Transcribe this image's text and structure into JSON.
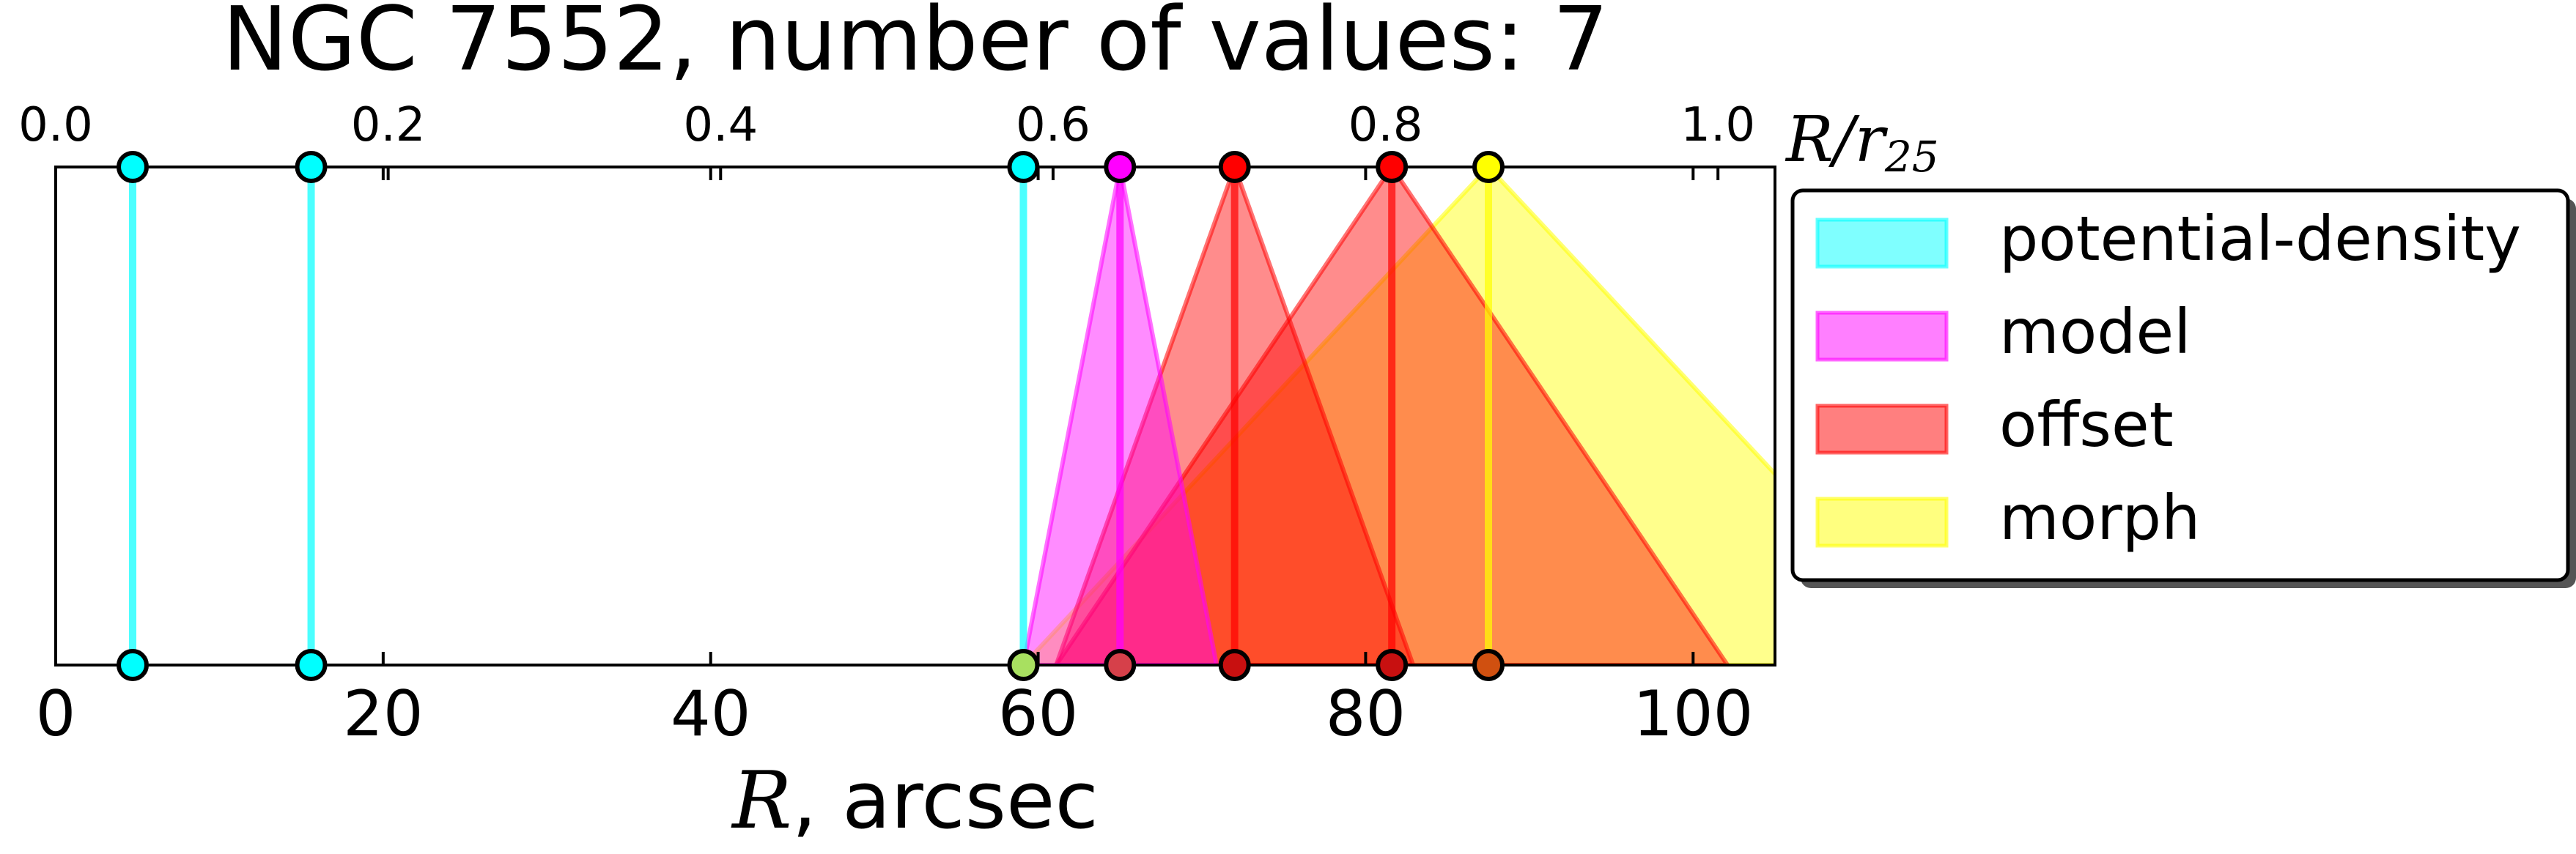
{
  "chart_data": {
    "type": "range-markers",
    "title": "NGC 7552, number of values: 7",
    "xlabel": {
      "var": "R",
      "rest": ", arcsec"
    },
    "x2label": {
      "var": "R/r",
      "sub": "25"
    },
    "xlim": [
      0,
      105
    ],
    "x2lim": [
      0,
      1.0343
    ],
    "xticks": [
      0,
      20,
      40,
      60,
      80,
      100
    ],
    "xtick_labels": [
      "0",
      "20",
      "40",
      "60",
      "80",
      "100"
    ],
    "x2ticks": [
      0.0,
      0.2,
      0.4,
      0.6,
      0.8,
      1.0
    ],
    "x2tick_labels": [
      "0.0",
      "0.2",
      "0.4",
      "0.6",
      "0.8",
      "1.0"
    ],
    "grid": false,
    "legend_position": "right",
    "series": [
      {
        "name": "potential-density",
        "color": "#00ffff",
        "values": [
          {
            "center": 4.7
          },
          {
            "center": 15.6
          },
          {
            "center": 59.1
          }
        ]
      },
      {
        "name": "model",
        "color": "#ff00ff",
        "values": [
          {
            "center": 65.0,
            "range": [
              59.1,
              70.9
            ]
          }
        ]
      },
      {
        "name": "offset",
        "color": "#ff0000",
        "values": [
          {
            "center": 72.0,
            "range": [
              61.1,
              82.9
            ]
          },
          {
            "center": 81.6,
            "range": [
              61.1,
              102.1
            ]
          }
        ]
      },
      {
        "name": "morph",
        "color": "#ffff00",
        "values": [
          {
            "center": 87.5,
            "range": [
              59.1,
              115.9
            ]
          }
        ]
      }
    ],
    "point_colors": {
      "model": [
        "#ff00ff",
        "#cc3333"
      ],
      "offset_72": [
        "#ff0000",
        "#cc0000"
      ],
      "offset_81.6": [
        "#ff0000",
        "#cc0000"
      ],
      "morph": [
        "#ffff00",
        "#cc4400"
      ]
    }
  }
}
